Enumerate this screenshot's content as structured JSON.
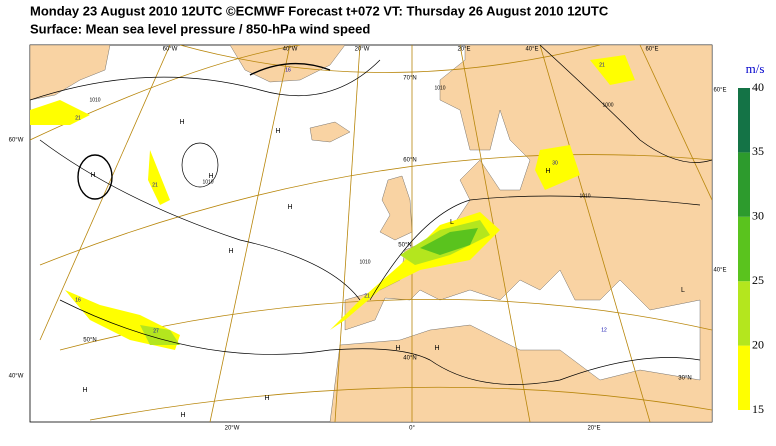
{
  "header": {
    "title": "Monday 23 August 2010 12UTC ©ECMWF Forecast t+072 VT: Thursday 26 August 2010 12UTC",
    "subtitle": "Surface: Mean sea level pressure / 850-hPa wind speed"
  },
  "graticule_labels": [
    "60°W",
    "40°W",
    "20°W",
    "20°E",
    "40°E",
    "60°E",
    "70°N",
    "60°N",
    "60°W",
    "40°W",
    "60°E",
    "40°E",
    "20°W",
    "0°",
    "20°E",
    "50°N",
    "40°N",
    "30°N",
    "50°N"
  ],
  "highs": [
    "H",
    "H",
    "H",
    "H",
    "H",
    "H",
    "H",
    "H",
    "H",
    "H",
    "H",
    "H"
  ],
  "lows": [
    "L",
    "L"
  ],
  "isobar_labels": [
    1010,
    1010,
    1010,
    1010,
    1000,
    1010
  ],
  "wind_labels": [
    21,
    21,
    21,
    16,
    16,
    30,
    21,
    27,
    12
  ],
  "colorbar": {
    "unit": "m/s",
    "ticks": [
      15,
      20,
      25,
      30,
      35,
      40
    ],
    "colors": [
      "#ffff00",
      "#b4e61e",
      "#5ac31e",
      "#2d9b2d",
      "#147346"
    ]
  }
}
